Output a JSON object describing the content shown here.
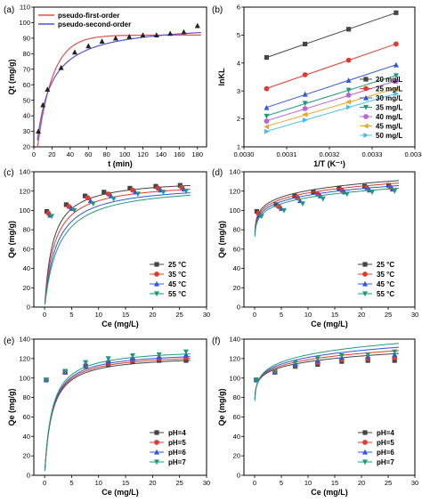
{
  "chart_data": [
    {
      "panel": "(a)",
      "type": "scatter",
      "xlabel": "t (min)",
      "ylabel": "Qt (mg/g)",
      "xlim": [
        0,
        190
      ],
      "ylim": [
        20,
        110
      ],
      "xticks": [
        0,
        20,
        40,
        60,
        80,
        100,
        120,
        140,
        160,
        180
      ],
      "yticks": [
        20,
        30,
        40,
        50,
        60,
        70,
        80,
        90,
        100,
        110
      ],
      "points": {
        "marker": "triangle",
        "color": "#222222",
        "x": [
          5,
          10,
          15,
          30,
          45,
          60,
          75,
          90,
          105,
          120,
          135,
          150,
          165,
          180
        ],
        "y": [
          30,
          47,
          57,
          71,
          81,
          85,
          88,
          90,
          91,
          92,
          92,
          93,
          94,
          98
        ]
      },
      "series": [
        {
          "name": "pseudo-first-order",
          "color": "#d9534f",
          "model": "pfo",
          "qe": 92,
          "k": 0.06
        },
        {
          "name": "pseudo-second-order",
          "color": "#5b4fcf",
          "model": "pso",
          "qe": 100,
          "k": 0.0008
        }
      ],
      "legend": "top-left"
    },
    {
      "panel": "(b)",
      "type": "scatter",
      "xlabel": "1/T (K⁻¹)",
      "ylabel": "lnKL",
      "xlim": [
        0.003,
        0.0034
      ],
      "ylim": [
        1,
        6
      ],
      "xticks": [
        0.003,
        0.0031,
        0.0032,
        0.0033,
        0.0034
      ],
      "xticklabels": [
        "0.0030",
        "0.0031",
        "0.0032",
        "0.0033",
        "0.0034"
      ],
      "yticks": [
        1,
        2,
        3,
        4,
        5,
        6
      ],
      "x": [
        0.003053,
        0.003143,
        0.003245,
        0.003356
      ],
      "series": [
        {
          "name": "20 mg/L",
          "marker": "square",
          "color": "#444444",
          "y": [
            4.2,
            4.68,
            5.21,
            5.8
          ]
        },
        {
          "name": "25 mg/L",
          "marker": "circle",
          "color": "#e03b2f",
          "y": [
            3.08,
            3.58,
            4.1,
            4.68
          ]
        },
        {
          "name": "30 mg/L",
          "marker": "triangle",
          "color": "#2f55e0",
          "y": [
            2.4,
            2.88,
            3.38,
            3.93
          ]
        },
        {
          "name": "35 mg/L",
          "marker": "triangle-down",
          "color": "#1e9a7a",
          "y": [
            2.1,
            2.56,
            3.03,
            3.55
          ]
        },
        {
          "name": "40 mg/L",
          "marker": "circle",
          "color": "#b565d9",
          "y": [
            1.92,
            2.37,
            2.85,
            3.35
          ]
        },
        {
          "name": "45 mg/L",
          "marker": "triangle-left",
          "color": "#e8a72a",
          "y": [
            1.72,
            2.16,
            2.61,
            3.08
          ]
        },
        {
          "name": "50 mg/L",
          "marker": "triangle-right",
          "color": "#46c0e8",
          "y": [
            1.55,
            1.96,
            2.42,
            2.9
          ]
        }
      ],
      "legend": "bottom-right"
    },
    {
      "panel": "(c)",
      "type": "scatter",
      "xlabel": "Ce (mg/L)",
      "ylabel": "Qe (mg/g)",
      "xlim": [
        -2,
        30
      ],
      "ylim": [
        0,
        140
      ],
      "xticks": [
        0,
        5,
        10,
        15,
        20,
        25,
        30
      ],
      "yticks": [
        0,
        20,
        40,
        60,
        80,
        100,
        120,
        140
      ],
      "fit": "langmuir",
      "series": [
        {
          "name": "25 °C",
          "marker": "square",
          "color": "#444444",
          "qm": 133,
          "k": 0.65,
          "x": [
            0.4,
            4,
            7.5,
            11,
            15.8,
            20.6,
            25.1
          ],
          "y": [
            99,
            106,
            115,
            119,
            123,
            125,
            126
          ]
        },
        {
          "name": "35 °C",
          "marker": "circle",
          "color": "#e03b2f",
          "qm": 130,
          "k": 0.55,
          "x": [
            0.7,
            4.5,
            8,
            11.8,
            16.3,
            21,
            25.4
          ],
          "y": [
            97,
            104,
            113,
            117,
            121,
            123,
            124
          ]
        },
        {
          "name": "45 °C",
          "marker": "triangle",
          "color": "#2f55e0",
          "qm": 128,
          "k": 0.45,
          "x": [
            1,
            5,
            8.5,
            12.3,
            16.8,
            21.5,
            25.8
          ],
          "y": [
            95,
            102,
            110,
            115,
            119,
            121,
            122
          ]
        },
        {
          "name": "55 °C",
          "marker": "triangle-down",
          "color": "#1e9a7a",
          "qm": 127,
          "k": 0.38,
          "x": [
            1.3,
            5.5,
            9,
            12.8,
            17.3,
            22,
            26.2
          ],
          "y": [
            94,
            100,
            107,
            112,
            117,
            119,
            120
          ]
        }
      ],
      "legend": "bottom-right"
    },
    {
      "panel": "(d)",
      "type": "scatter",
      "xlabel": "Ce (mg/L)",
      "ylabel": "Qe (mg/g)",
      "xlim": [
        -2,
        30
      ],
      "ylim": [
        0,
        140
      ],
      "xticks": [
        0,
        5,
        10,
        15,
        20,
        25,
        30
      ],
      "yticks": [
        0,
        20,
        40,
        60,
        80,
        100,
        120,
        140
      ],
      "fit": "freundlich",
      "series": [
        {
          "name": "25 °C",
          "marker": "square",
          "color": "#444444",
          "kf": 99.5,
          "n": 12,
          "x": [
            0.4,
            4,
            7.5,
            11,
            15.8,
            20.6,
            25.1
          ],
          "y": [
            99,
            106,
            115,
            119,
            123,
            125,
            126
          ]
        },
        {
          "name": "35 °C",
          "marker": "circle",
          "color": "#e03b2f",
          "kf": 97.5,
          "n": 12,
          "x": [
            0.7,
            4.5,
            8,
            11.8,
            16.3,
            21,
            25.4
          ],
          "y": [
            97,
            104,
            113,
            117,
            121,
            123,
            124
          ]
        },
        {
          "name": "45 °C",
          "marker": "triangle",
          "color": "#2f55e0",
          "kf": 95.5,
          "n": 12,
          "x": [
            1,
            5,
            8.5,
            12.3,
            16.8,
            21.5,
            25.8
          ],
          "y": [
            95,
            102,
            110,
            115,
            119,
            121,
            122
          ]
        },
        {
          "name": "55 °C",
          "marker": "triangle-down",
          "color": "#1e9a7a",
          "kf": 93.5,
          "n": 12,
          "x": [
            1.3,
            5.5,
            9,
            12.8,
            17.3,
            22,
            26.2
          ],
          "y": [
            94,
            100,
            107,
            112,
            117,
            119,
            120
          ]
        }
      ],
      "legend": "bottom-right"
    },
    {
      "panel": "(e)",
      "type": "scatter",
      "xlabel": "Ce (mg/L)",
      "ylabel": "Qe (mg/g)",
      "xlim": [
        -2,
        30
      ],
      "ylim": [
        0,
        140
      ],
      "xticks": [
        0,
        5,
        10,
        15,
        20,
        25,
        30
      ],
      "yticks": [
        0,
        20,
        40,
        60,
        80,
        100,
        120,
        140
      ],
      "fit": "langmuir",
      "series": [
        {
          "name": "pH=4",
          "marker": "square",
          "color": "#444444",
          "qm": 124,
          "k": 0.75,
          "x": [
            0.3,
            3.8,
            7.6,
            11.8,
            16.3,
            21.2,
            26.2
          ],
          "y": [
            98,
            106,
            112,
            114,
            117,
            118,
            118
          ]
        },
        {
          "name": "pH=5",
          "marker": "circle",
          "color": "#e03b2f",
          "qm": 126,
          "k": 0.75,
          "x": [
            0.3,
            3.8,
            7.6,
            11.8,
            16.3,
            21.2,
            26.2
          ],
          "y": [
            98,
            106,
            113,
            116,
            119,
            120,
            121
          ]
        },
        {
          "name": "pH=6",
          "marker": "triangle",
          "color": "#2f55e0",
          "qm": 128,
          "k": 0.75,
          "x": [
            0.3,
            3.8,
            7.6,
            11.8,
            16.3,
            21.2,
            26.2
          ],
          "y": [
            98,
            106,
            114,
            118,
            121,
            122,
            124
          ]
        },
        {
          "name": "pH=7",
          "marker": "triangle-down",
          "color": "#1e9a7a",
          "qm": 131,
          "k": 0.75,
          "x": [
            0.3,
            3.8,
            7.6,
            11.8,
            16.3,
            21.2,
            26.2
          ],
          "y": [
            98,
            107,
            116,
            120,
            123,
            124,
            127
          ]
        }
      ],
      "legend": "bottom-right"
    },
    {
      "panel": "(f)",
      "type": "scatter",
      "xlabel": "Ce (mg/L)",
      "ylabel": "Qe (mg/g)",
      "xlim": [
        -2,
        30
      ],
      "ylim": [
        0,
        140
      ],
      "xticks": [
        0,
        5,
        10,
        15,
        20,
        25,
        30
      ],
      "yticks": [
        0,
        20,
        40,
        60,
        80,
        100,
        120,
        140
      ],
      "fit": "freundlich",
      "series": [
        {
          "name": "pH=4",
          "marker": "square",
          "color": "#444444",
          "kf": 99,
          "n": 14,
          "x": [
            0.3,
            3.8,
            7.6,
            11.8,
            16.3,
            21.2,
            26.2
          ],
          "y": [
            98,
            106,
            112,
            114,
            117,
            118,
            118
          ]
        },
        {
          "name": "pH=5",
          "marker": "circle",
          "color": "#e03b2f",
          "kf": 99.5,
          "n": 13,
          "x": [
            0.3,
            3.8,
            7.6,
            11.8,
            16.3,
            21.2,
            26.2
          ],
          "y": [
            98,
            106,
            113,
            116,
            119,
            120,
            121
          ]
        },
        {
          "name": "pH=6",
          "marker": "triangle",
          "color": "#2f55e0",
          "kf": 100,
          "n": 12,
          "x": [
            0.3,
            3.8,
            7.6,
            11.8,
            16.3,
            21.2,
            26.2
          ],
          "y": [
            98,
            106,
            114,
            118,
            121,
            122,
            124
          ]
        },
        {
          "name": "pH=7",
          "marker": "triangle-down",
          "color": "#1e9a7a",
          "kf": 100.5,
          "n": 11,
          "x": [
            0.3,
            3.8,
            7.6,
            11.8,
            16.3,
            21.2,
            26.2
          ],
          "y": [
            98,
            107,
            116,
            120,
            123,
            124,
            127
          ]
        }
      ],
      "legend": "bottom-right"
    }
  ]
}
